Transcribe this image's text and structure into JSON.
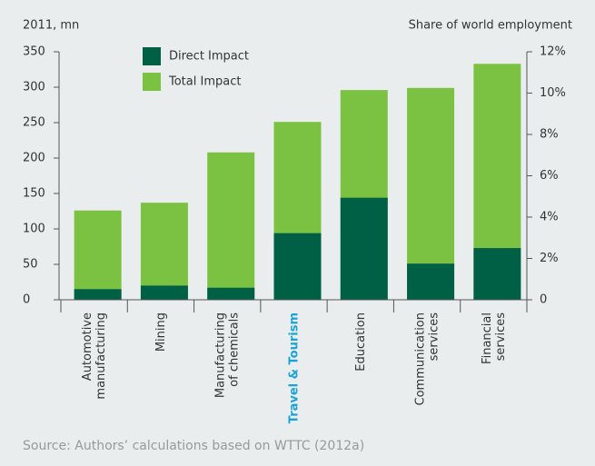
{
  "chart_data": {
    "type": "bar",
    "y_axis_label": "2011, mn",
    "y2_axis_label": "Share of world employment",
    "categories": [
      "Automotive\nmanufacturing",
      "Mining",
      "Manufacturing\nof chemicals",
      "Travel & Tourism",
      "Education",
      "Communication\nservices",
      "Financial\nservices"
    ],
    "highlight_index": 3,
    "highlight_color": "#1aa3d9",
    "series": [
      {
        "name": "Total Impact",
        "color": "#7cc242",
        "values": [
          126,
          137,
          208,
          251,
          296,
          299,
          333
        ]
      },
      {
        "name": "Direct Impact",
        "color": "#006045",
        "values": [
          15,
          20,
          17,
          94,
          144,
          51,
          73
        ]
      }
    ],
    "ylim": [
      0,
      350
    ],
    "yticks": [
      0,
      50,
      100,
      150,
      200,
      250,
      300,
      350
    ],
    "y2lim": [
      0,
      12
    ],
    "y2ticks": [
      {
        "value": 0,
        "label": "0"
      },
      {
        "value": 2,
        "label": "2%"
      },
      {
        "value": 4,
        "label": "4%"
      },
      {
        "value": 6,
        "label": "6%"
      },
      {
        "value": 8,
        "label": "8%"
      },
      {
        "value": 10,
        "label": "10%"
      },
      {
        "value": 12,
        "label": "12%"
      }
    ],
    "source": "Source: Authors’ calculations based on WTTC (2012a)"
  }
}
